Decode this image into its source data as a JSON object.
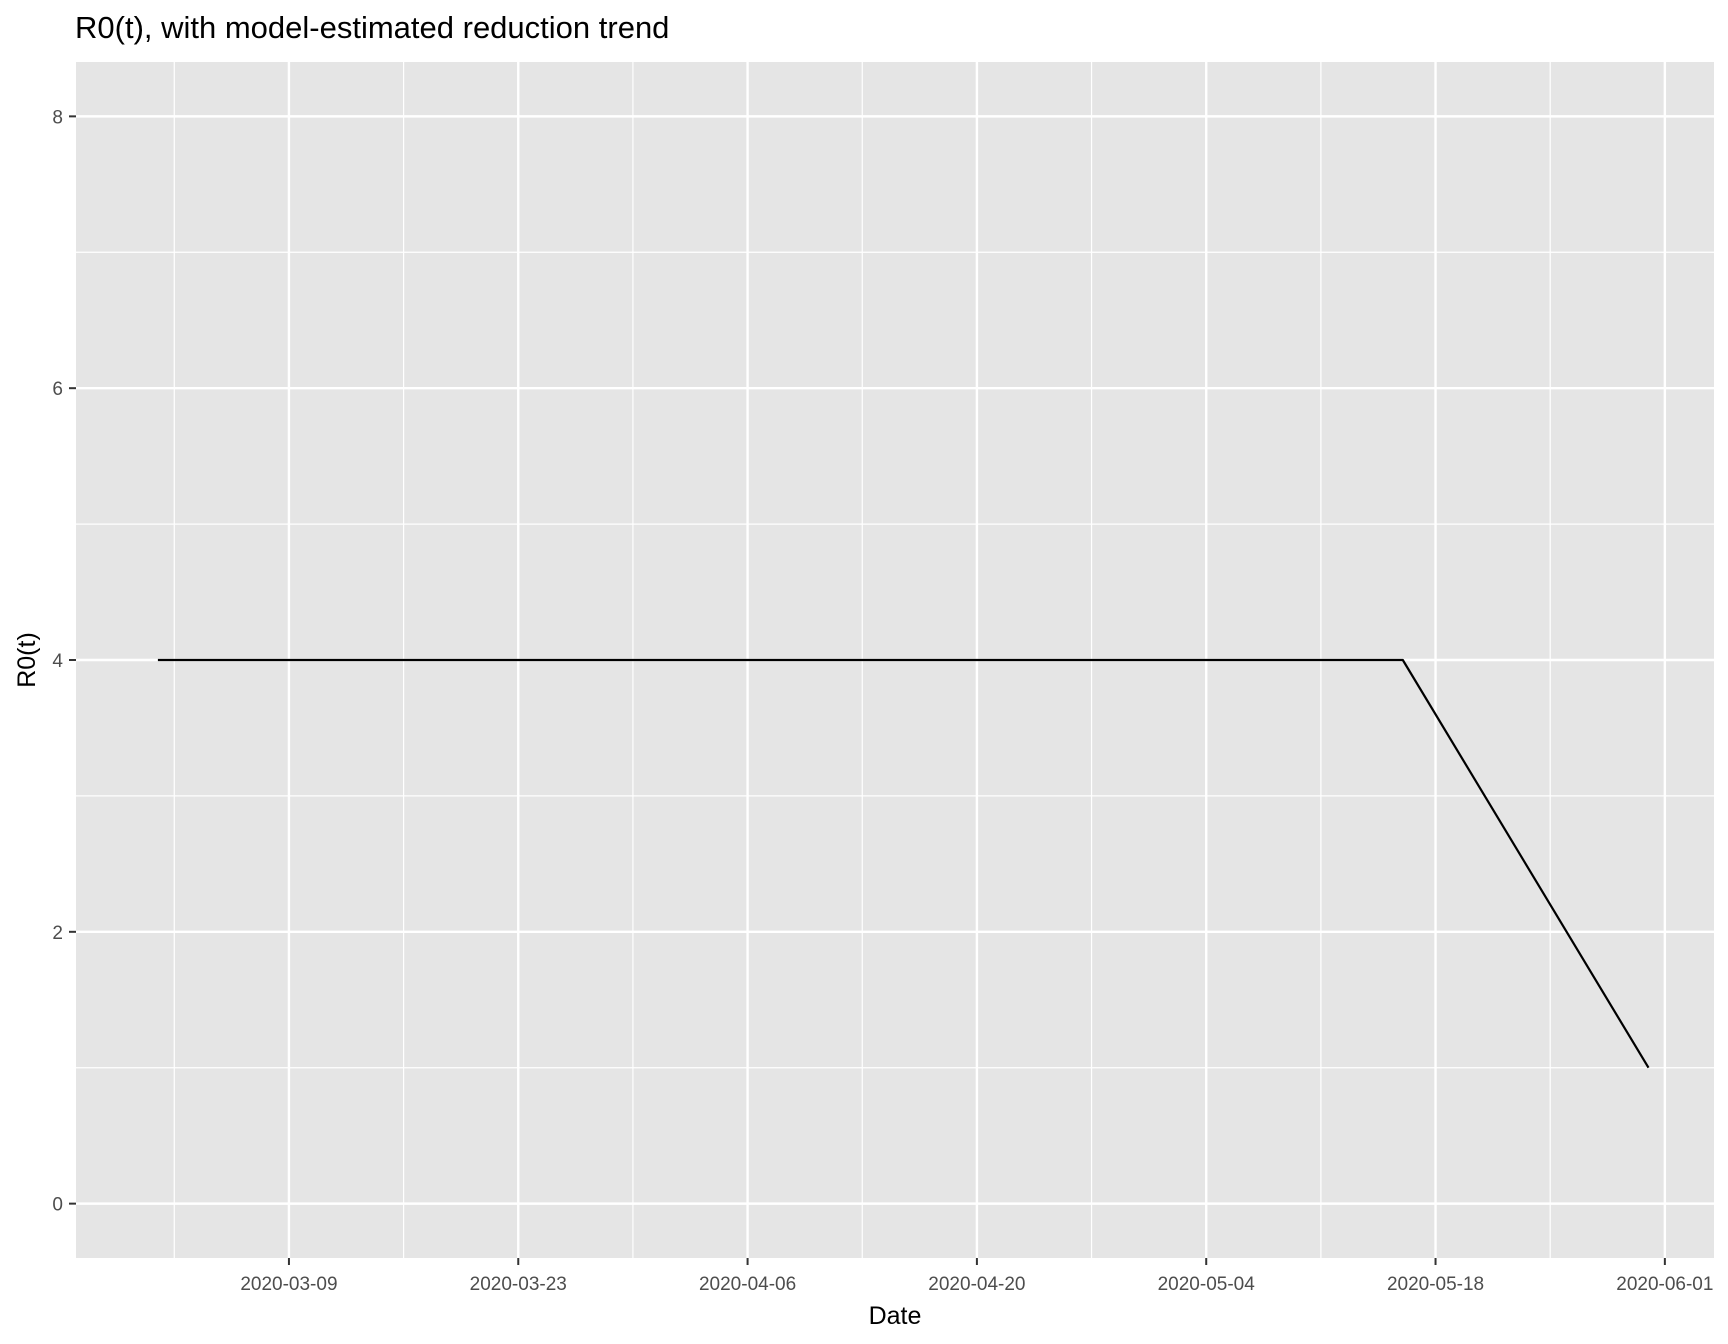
{
  "chart_data": {
    "type": "line",
    "title": "R0(t), with model-estimated reduction trend",
    "xlabel": "Date",
    "ylabel": "R0(t)",
    "x_axis_type": "date",
    "xlim": [
      "2020-02-25",
      "2020-06-04"
    ],
    "ylim": [
      -0.4,
      8.4
    ],
    "x_ticks": [
      "2020-03-09",
      "2020-03-23",
      "2020-04-06",
      "2020-04-20",
      "2020-05-04",
      "2020-05-18",
      "2020-06-01"
    ],
    "y_ticks": [
      0,
      2,
      4,
      6,
      8
    ],
    "grid": true,
    "legend": "none",
    "series": [
      {
        "color": "#000000",
        "points": [
          {
            "x": "2020-03-01",
            "y": 4
          },
          {
            "x": "2020-05-16",
            "y": 4
          },
          {
            "x": "2020-05-31",
            "y": 1
          }
        ]
      }
    ],
    "colors": {
      "panel_background": "#e5e5e5",
      "grid": "#ffffff",
      "line": "#000000"
    }
  }
}
